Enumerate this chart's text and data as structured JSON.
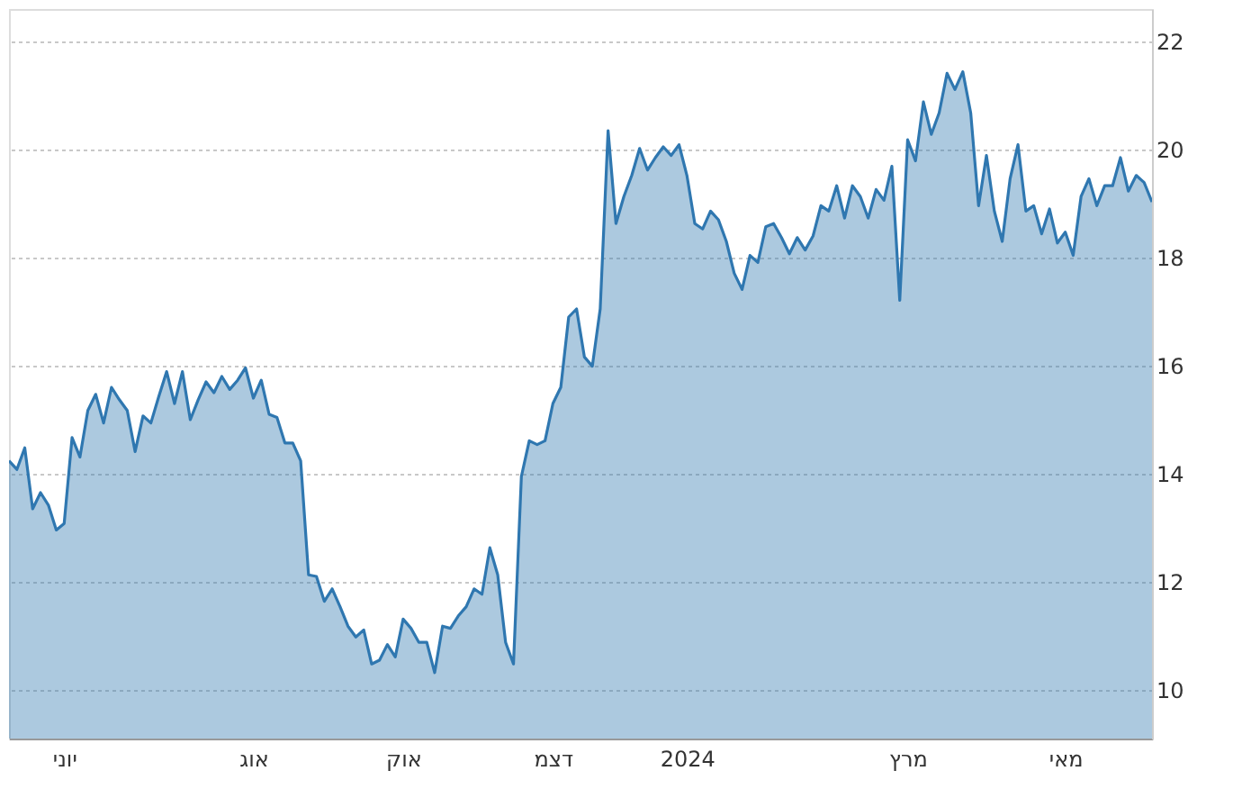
{
  "chart_data": {
    "type": "area",
    "categories": [
      null,
      null,
      null,
      null,
      null,
      null,
      null,
      "יוני",
      null,
      null,
      null,
      null,
      null,
      null,
      null,
      null,
      null,
      null,
      null,
      null,
      null,
      null,
      null,
      null,
      null,
      null,
      null,
      null,
      null,
      null,
      null,
      "אוג",
      null,
      null,
      null,
      null,
      null,
      null,
      null,
      null,
      null,
      null,
      null,
      null,
      null,
      null,
      null,
      null,
      null,
      null,
      "אוק",
      null,
      null,
      null,
      null,
      null,
      null,
      null,
      null,
      null,
      null,
      null,
      null,
      null,
      null,
      null,
      null,
      null,
      null,
      "דצמ",
      null,
      null,
      null,
      null,
      null,
      null,
      null,
      null,
      null,
      null,
      null,
      null,
      null,
      null,
      null,
      null,
      "2024",
      null,
      null,
      null,
      null,
      null,
      null,
      null,
      null,
      null,
      null,
      null,
      null,
      null,
      null,
      null,
      null,
      null,
      null,
      null,
      null,
      null,
      null,
      null,
      null,
      null,
      null,
      null,
      "מרץ",
      null,
      null,
      null,
      null,
      null,
      null,
      null,
      null,
      null,
      null,
      null,
      null,
      null,
      null,
      null,
      null,
      null,
      null,
      null,
      "מאי",
      null,
      null,
      null,
      null,
      null,
      null,
      null,
      null,
      null,
      null,
      null
    ],
    "series": [
      {
        "color": "#2f77b0",
        "values": [
          14.24,
          14.08,
          14.48,
          13.35,
          13.65,
          13.42,
          12.96,
          13.08,
          14.67,
          14.31,
          15.17,
          15.47,
          14.94,
          15.6,
          15.37,
          15.17,
          14.41,
          15.07,
          14.94,
          15.43,
          15.89,
          15.3,
          15.89,
          15.0,
          15.37,
          15.7,
          15.5,
          15.8,
          15.56,
          15.73,
          15.96,
          15.4,
          15.73,
          15.1,
          15.04,
          14.57,
          14.57,
          14.24,
          12.13,
          12.1,
          11.64,
          11.87,
          11.54,
          11.18,
          10.98,
          11.11,
          10.48,
          10.55,
          10.84,
          10.61,
          11.31,
          11.14,
          10.88,
          10.88,
          10.32,
          11.18,
          11.14,
          11.37,
          11.54,
          11.87,
          11.77,
          12.63,
          12.13,
          10.88,
          10.48,
          13.95,
          14.61,
          14.54,
          14.61,
          15.3,
          15.6,
          16.9,
          17.05,
          16.16,
          15.99,
          17.05,
          20.35,
          18.63,
          19.13,
          19.52,
          20.02,
          19.62,
          19.85,
          20.05,
          19.89,
          20.09,
          19.52,
          18.63,
          18.53,
          18.86,
          18.7,
          18.3,
          17.71,
          17.41,
          18.04,
          17.91,
          18.57,
          18.63,
          18.37,
          18.07,
          18.37,
          18.14,
          18.4,
          18.96,
          18.86,
          19.33,
          18.73,
          19.33,
          19.13,
          18.73,
          19.26,
          19.06,
          19.69,
          17.21,
          20.18,
          19.79,
          20.88,
          20.28,
          20.68,
          21.41,
          21.11,
          21.44,
          20.68,
          18.96,
          19.89,
          18.86,
          18.3,
          19.46,
          20.09,
          18.86,
          18.96,
          18.44,
          18.9,
          18.27,
          18.47,
          18.04,
          19.13,
          19.46,
          18.96,
          19.33,
          19.33,
          19.85,
          19.23,
          19.52,
          19.39,
          19.03
        ]
      }
    ],
    "ylim": [
      9.1,
      22.6
    ],
    "yticks": [
      10,
      12,
      14,
      16,
      18,
      20,
      22
    ],
    "grid": "y"
  }
}
